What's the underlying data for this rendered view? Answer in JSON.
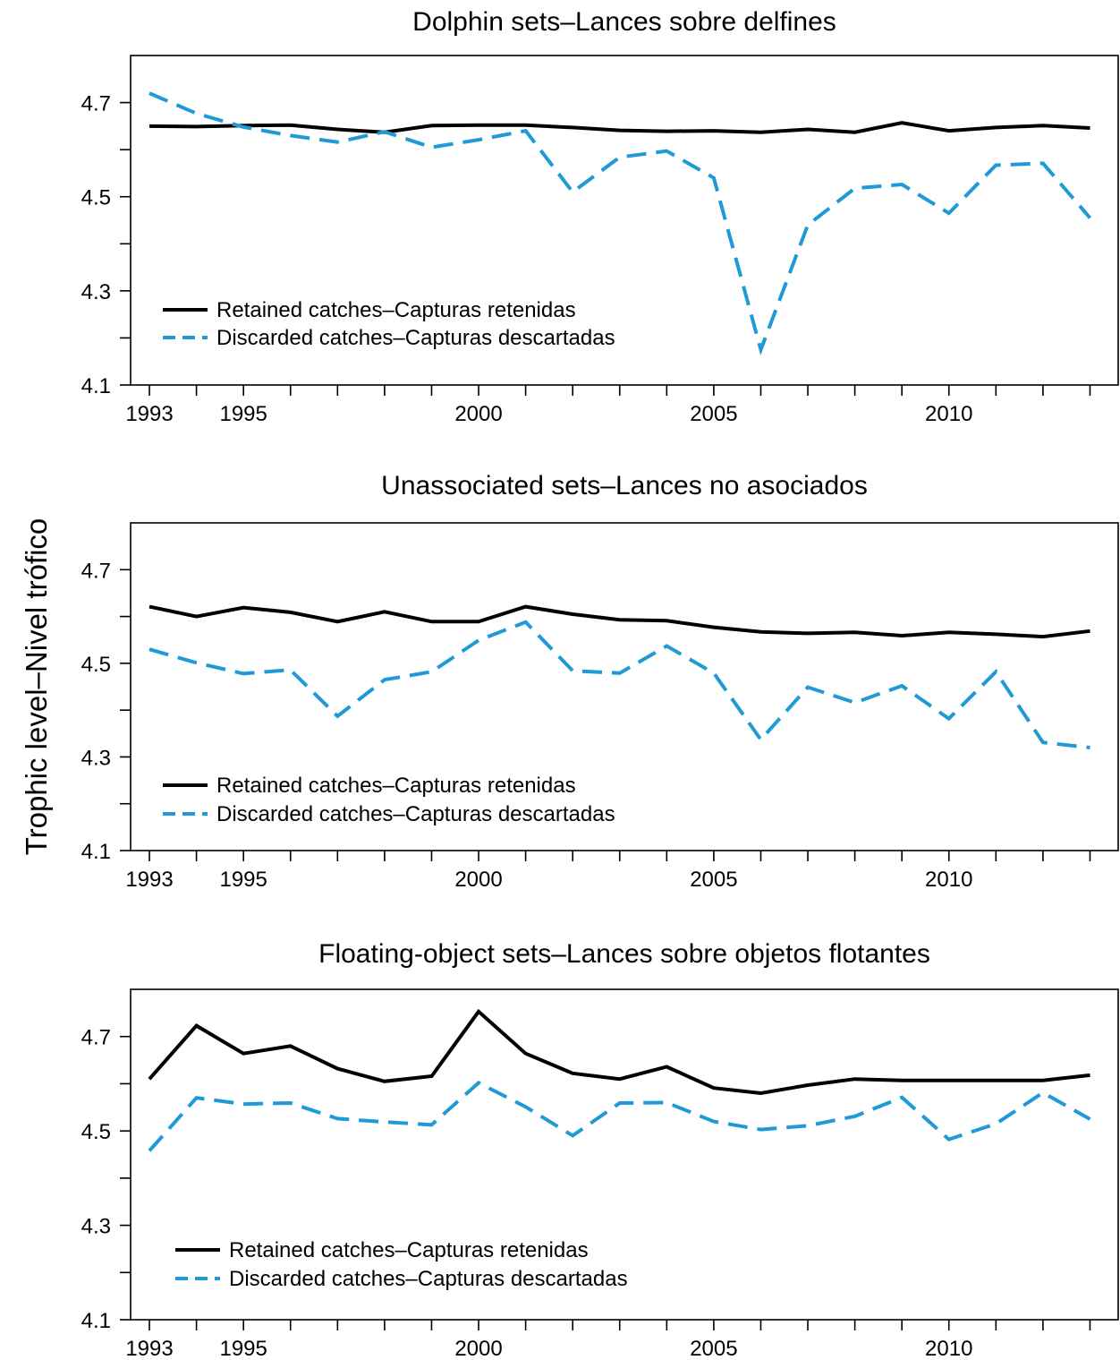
{
  "figure": {
    "ylabel": "Trophic level–Nivel trófico"
  },
  "chart_data": [
    {
      "type": "line",
      "title": "Dolphin sets–Lances sobre delfines",
      "xlabel": "",
      "ylabel": "Trophic level–Nivel trófico",
      "x": [
        1993,
        1994,
        1995,
        1996,
        1997,
        1998,
        1999,
        2000,
        2001,
        2002,
        2003,
        2004,
        2005,
        2006,
        2007,
        2008,
        2009,
        2010,
        2011,
        2012,
        2013
      ],
      "xlim": [
        1992.6,
        2013.6
      ],
      "ylim": [
        4.1,
        4.8
      ],
      "xticks_labeled": [
        1993,
        1995,
        2000,
        2005,
        2010
      ],
      "yticks_labeled": [
        4.1,
        4.3,
        4.5,
        4.7
      ],
      "yticks_minor": [
        4.2,
        4.4,
        4.6
      ],
      "legend_position": "bottom-left",
      "series": [
        {
          "name": "Retained catches–Capturas retenidas",
          "color": "#000000",
          "style": "solid",
          "values": [
            4.65,
            4.649,
            4.651,
            4.652,
            4.643,
            4.637,
            4.651,
            4.652,
            4.652,
            4.647,
            4.641,
            4.639,
            4.64,
            4.637,
            4.643,
            4.637,
            4.657,
            4.64,
            4.647,
            4.651,
            4.646
          ]
        },
        {
          "name": "Discarded catches–Capturas descartadas",
          "color": "#1f9ad6",
          "style": "dashed",
          "values": [
            4.72,
            4.677,
            4.648,
            4.63,
            4.616,
            4.638,
            4.605,
            4.621,
            4.64,
            4.51,
            4.584,
            4.597,
            4.54,
            4.175,
            4.44,
            4.518,
            4.526,
            4.465,
            4.567,
            4.571,
            4.455
          ]
        }
      ]
    },
    {
      "type": "line",
      "title": "Unassociated sets–Lances no asociados",
      "xlabel": "",
      "ylabel": "Trophic level–Nivel trófico",
      "x": [
        1993,
        1994,
        1995,
        1996,
        1997,
        1998,
        1999,
        2000,
        2001,
        2002,
        2003,
        2004,
        2005,
        2006,
        2007,
        2008,
        2009,
        2010,
        2011,
        2012,
        2013
      ],
      "xlim": [
        1992.6,
        2013.6
      ],
      "ylim": [
        4.1,
        4.8
      ],
      "xticks_labeled": [
        1993,
        1995,
        2000,
        2005,
        2010
      ],
      "yticks_labeled": [
        4.1,
        4.3,
        4.5,
        4.7
      ],
      "yticks_minor": [
        4.2,
        4.4,
        4.6
      ],
      "legend_position": "bottom-left",
      "series": [
        {
          "name": "Retained catches–Capturas retenidas",
          "color": "#000000",
          "style": "solid",
          "values": [
            4.621,
            4.6,
            4.619,
            4.609,
            4.589,
            4.61,
            4.589,
            4.589,
            4.621,
            4.605,
            4.593,
            4.591,
            4.577,
            4.567,
            4.564,
            4.566,
            4.559,
            4.566,
            4.562,
            4.557,
            4.569
          ]
        },
        {
          "name": "Discarded catches–Capturas descartadas",
          "color": "#1f9ad6",
          "style": "dashed",
          "values": [
            4.53,
            4.501,
            4.478,
            4.486,
            4.387,
            4.465,
            4.482,
            4.549,
            4.588,
            4.484,
            4.479,
            4.537,
            4.479,
            4.337,
            4.449,
            4.416,
            4.452,
            4.382,
            4.482,
            4.331,
            4.32
          ]
        }
      ]
    },
    {
      "type": "line",
      "title": "Floating-object sets–Lances sobre objetos flotantes",
      "xlabel": "",
      "ylabel": "Trophic level–Nivel trófico",
      "x": [
        1993,
        1994,
        1995,
        1996,
        1997,
        1998,
        1999,
        2000,
        2001,
        2002,
        2003,
        2004,
        2005,
        2006,
        2007,
        2008,
        2009,
        2010,
        2011,
        2012,
        2013
      ],
      "xlim": [
        1992.6,
        2013.6
      ],
      "ylim": [
        4.1,
        4.8
      ],
      "xticks_labeled": [
        1993,
        1995,
        2000,
        2005,
        2010
      ],
      "yticks_labeled": [
        4.1,
        4.3,
        4.5,
        4.7
      ],
      "yticks_minor": [
        4.2,
        4.4,
        4.6
      ],
      "legend_position": "bottom-left",
      "series": [
        {
          "name": "Retained catches–Capturas retenidas",
          "color": "#000000",
          "style": "solid",
          "values": [
            4.61,
            4.723,
            4.664,
            4.68,
            4.632,
            4.605,
            4.616,
            4.753,
            4.664,
            4.622,
            4.61,
            4.636,
            4.591,
            4.58,
            4.597,
            4.61,
            4.607,
            4.607,
            4.607,
            4.607,
            4.618
          ]
        },
        {
          "name": "Discarded catches–Capturas descartadas",
          "color": "#1f9ad6",
          "style": "dashed",
          "values": [
            4.458,
            4.57,
            4.557,
            4.559,
            4.526,
            4.519,
            4.513,
            4.602,
            4.551,
            4.49,
            4.559,
            4.56,
            4.52,
            4.503,
            4.511,
            4.531,
            4.571,
            4.482,
            4.515,
            4.581,
            4.525
          ]
        }
      ]
    }
  ]
}
